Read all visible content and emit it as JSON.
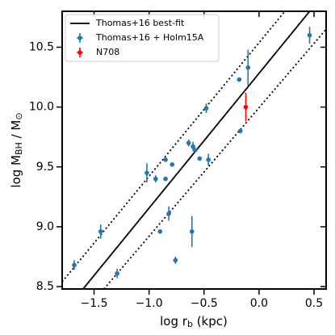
{
  "chart_data": {
    "type": "scatter",
    "xlabel": [
      "log r",
      "b",
      " (kpc)"
    ],
    "ylabel": [
      "log M",
      "BH",
      " / M",
      "⊙"
    ],
    "xlim": [
      -1.79,
      0.61
    ],
    "ylim": [
      8.48,
      10.8
    ],
    "xticks": [
      {
        "value": -1.5,
        "label": "−1.5"
      },
      {
        "value": -1.0,
        "label": "−1.0"
      },
      {
        "value": -0.5,
        "label": "−0.5"
      },
      {
        "value": 0.0,
        "label": "0.0"
      },
      0.5
    ],
    "yticks": [
      8.5,
      {
        "value": 9.0,
        "label": "9.0"
      },
      9.5,
      {
        "value": 10.0,
        "label": "10.0"
      },
      10.5
    ],
    "legend": "upper left",
    "lines": [
      {
        "name": "Thomas+16 best-fit",
        "color": "#000000",
        "style": "solid",
        "x": [
          -1.6,
          0.46
        ],
        "y": [
          8.48,
          10.8
        ]
      },
      {
        "color": "#000000",
        "style": "dotted",
        "x": [
          -1.79,
          0.235
        ],
        "y": [
          8.54,
          10.8
        ]
      },
      {
        "color": "#000000",
        "style": "dotted",
        "x": [
          -1.41,
          0.61
        ],
        "y": [
          8.48,
          10.65
        ]
      }
    ],
    "series": [
      {
        "name": "Thomas+16 + Holm15A",
        "color": "#1f77b4",
        "x": [
          -1.68,
          -1.44,
          -1.29,
          -1.02,
          -0.94,
          -0.85,
          -0.85,
          -0.82,
          -0.79,
          -0.9,
          -0.76,
          -0.64,
          -0.61,
          -0.6,
          -0.58,
          -0.54,
          -0.48,
          -0.46,
          -0.18,
          -0.17,
          -0.1,
          0.46
        ],
        "values": [
          8.68,
          8.96,
          8.61,
          9.45,
          9.4,
          9.56,
          9.4,
          9.11,
          9.52,
          8.96,
          8.72,
          9.7,
          8.96,
          9.67,
          9.64,
          9.57,
          9.99,
          9.56,
          10.23,
          9.8,
          10.33,
          10.6
        ],
        "yerr": [
          0.04,
          0.06,
          0.04,
          0.08,
          0.03,
          0.01,
          0.01,
          0.06,
          0.01,
          0.01,
          0.03,
          0.03,
          0.13,
          0.04,
          0.01,
          0.01,
          0.04,
          0.05,
          0.01,
          0.01,
          0.15,
          0.07
        ]
      },
      {
        "name": "N708",
        "color": "#ff0000",
        "x": [
          -0.12
        ],
        "values": [
          10.0
        ],
        "yerr": [
          0.12
        ]
      }
    ]
  }
}
